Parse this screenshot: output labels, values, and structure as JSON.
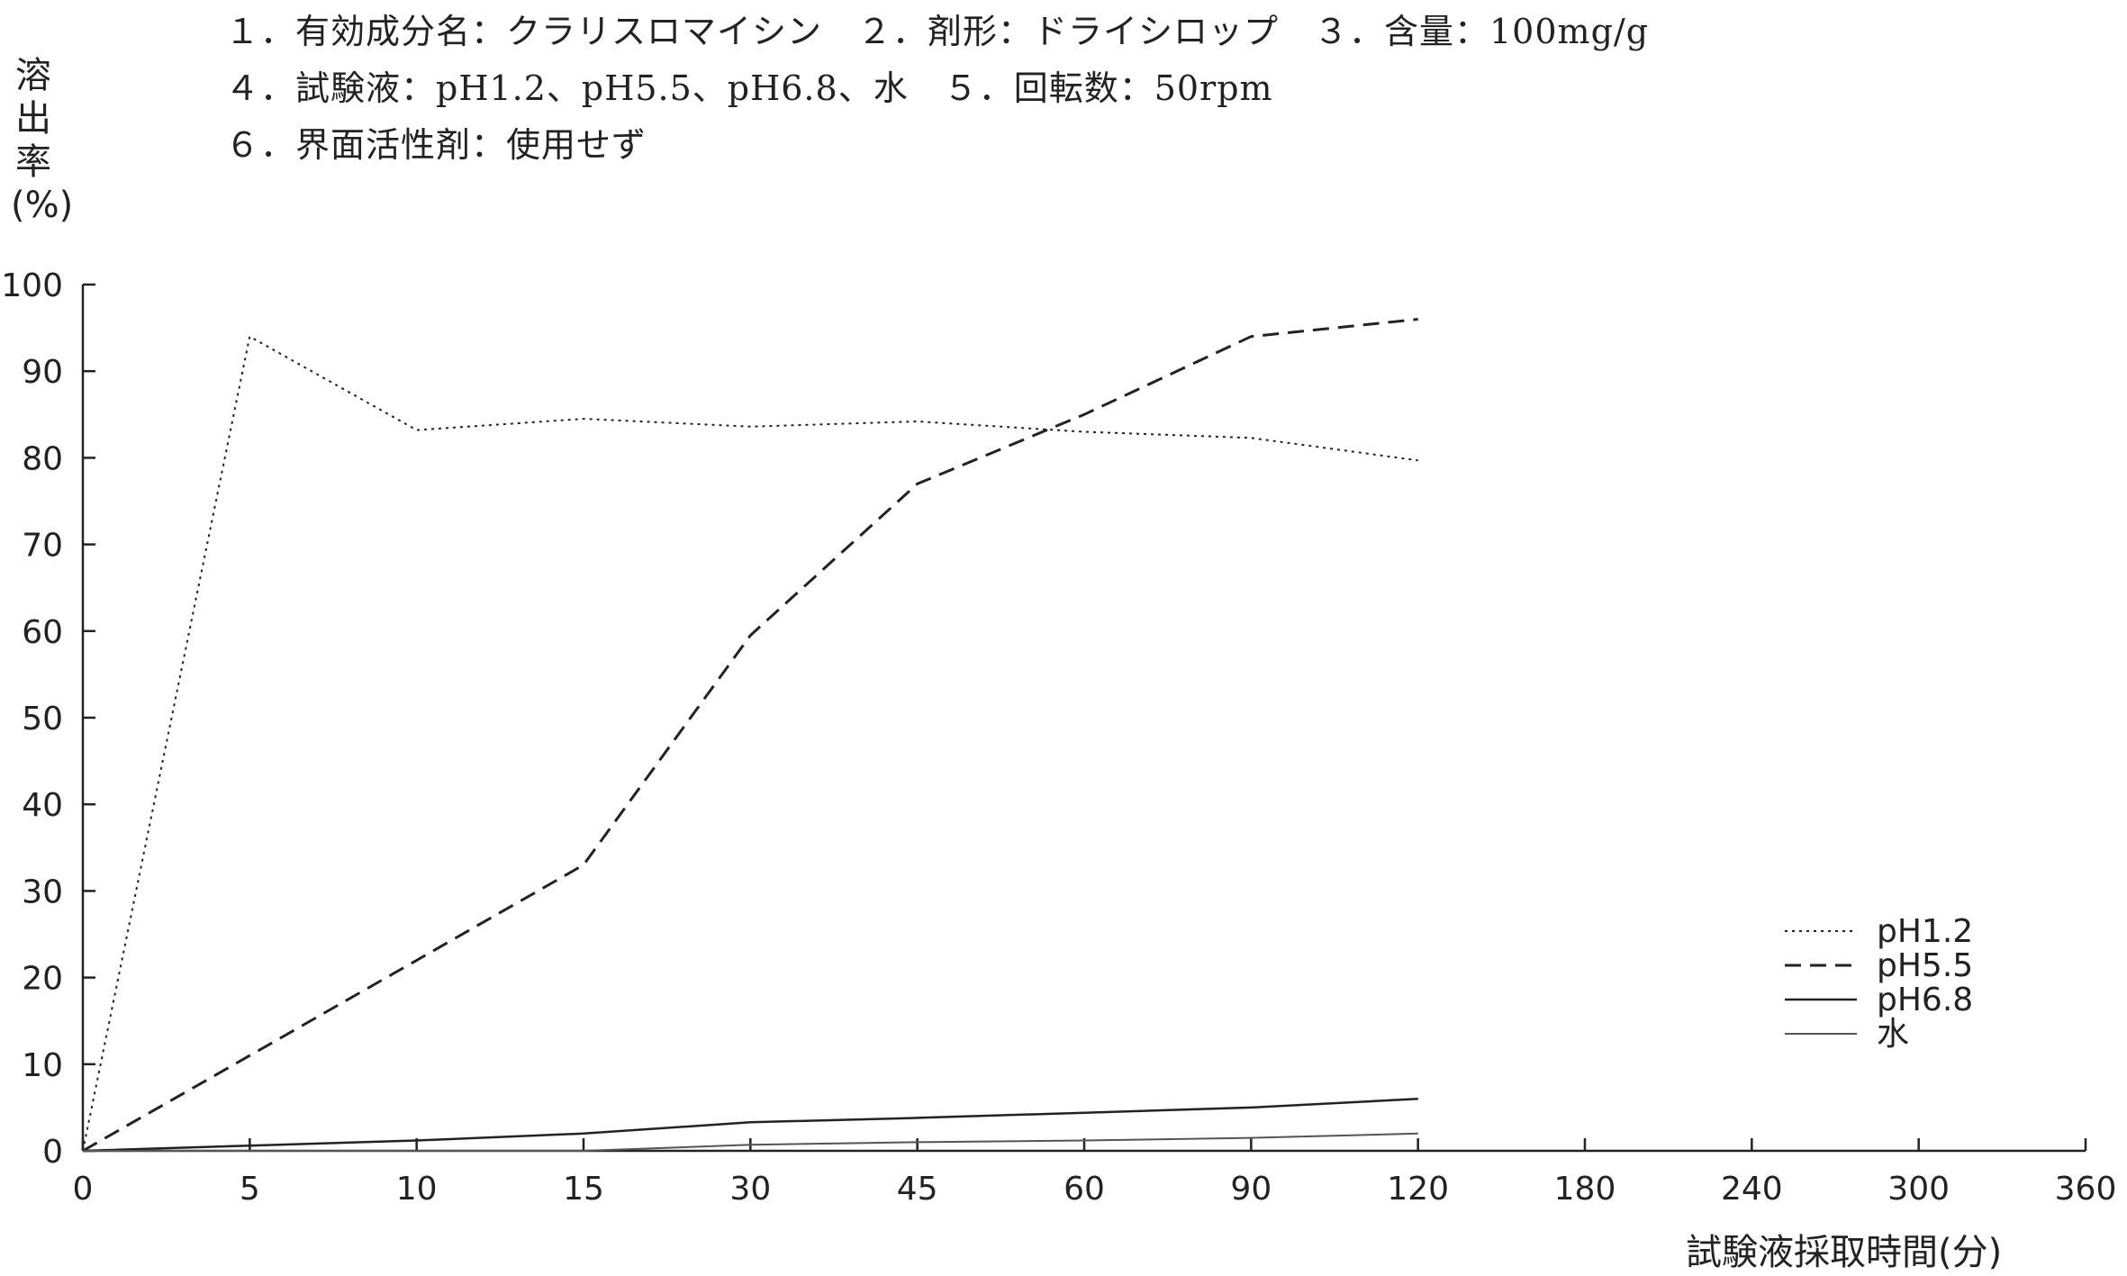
{
  "header": {
    "line1": "１．有効成分名：クラリスロマイシン　２．剤形：ドライシロップ　３．含量：100mg/g",
    "line2": "４．試験液：pH1.2、pH5.5、pH6.8、水　５．回転数：50rpm",
    "line3": "６．界面活性剤：使用せず"
  },
  "axes": {
    "ylabel_chars": [
      "溶",
      "出",
      "率",
      "(%)"
    ],
    "xlabel": "試験液採取時間(分)"
  },
  "chart_data": {
    "type": "line",
    "title": "",
    "xlabel": "試験液採取時間(分)",
    "ylabel": "溶出率(%)",
    "categories": [
      "0",
      "5",
      "10",
      "15",
      "30",
      "45",
      "60",
      "90",
      "120",
      "180",
      "240",
      "300",
      "360"
    ],
    "ylim": [
      0,
      100
    ],
    "yticks": [
      "0",
      "10",
      "20",
      "30",
      "40",
      "50",
      "60",
      "70",
      "80",
      "90",
      "100"
    ],
    "grid": false,
    "legend_position": "bottom-right",
    "series": [
      {
        "name": "pH1.2",
        "style": "dotted",
        "color": "#222222",
        "x": [
          "0",
          "5",
          "10",
          "15",
          "30",
          "45",
          "60",
          "90",
          "120"
        ],
        "values": [
          0,
          94,
          83.2,
          84.5,
          83.6,
          84.2,
          83,
          82.3,
          79.7
        ]
      },
      {
        "name": "pH5.5",
        "style": "dashed",
        "color": "#222222",
        "x": [
          "0",
          "5",
          "10",
          "15",
          "30",
          "45",
          "60",
          "90",
          "120"
        ],
        "values": [
          0,
          11,
          22,
          33,
          59.5,
          77,
          85,
          94,
          96
        ]
      },
      {
        "name": "pH6.8",
        "style": "solid",
        "color": "#222222",
        "x": [
          "0",
          "5",
          "10",
          "15",
          "30",
          "45",
          "60",
          "90",
          "120"
        ],
        "values": [
          0,
          0.6,
          1.2,
          2,
          3.3,
          3.8,
          4.4,
          5,
          6
        ]
      },
      {
        "name": "水",
        "style": "solid-thin",
        "color": "#555555",
        "x": [
          "0",
          "5",
          "10",
          "15",
          "30",
          "45",
          "60",
          "90",
          "120"
        ],
        "values": [
          0,
          0,
          0,
          0,
          0.7,
          1,
          1.2,
          1.5,
          2
        ]
      }
    ]
  }
}
